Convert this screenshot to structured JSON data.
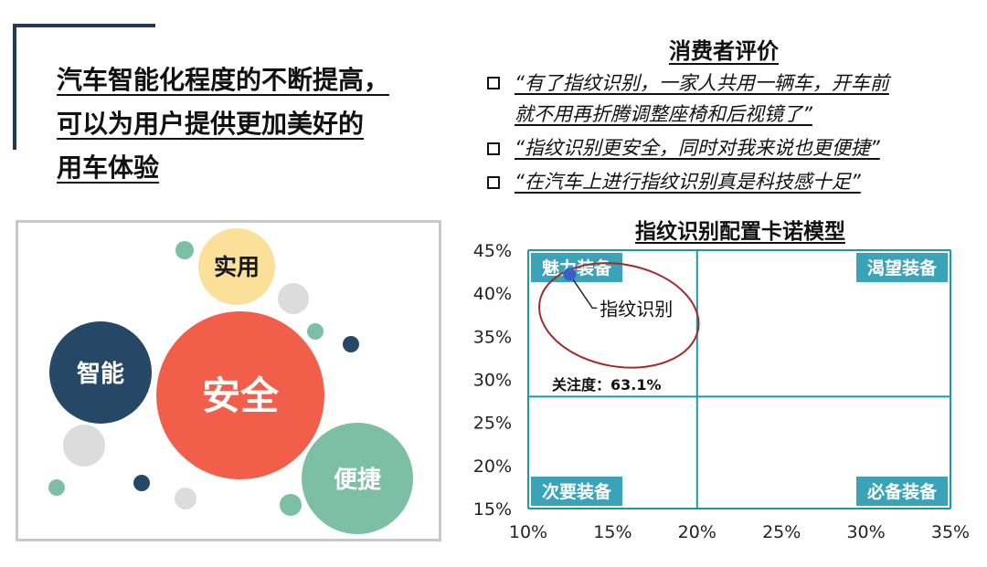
{
  "headline": {
    "lines": [
      "汽车智能化程度的不断提高，",
      "可以为用户提供更加美好的",
      "用车体验"
    ]
  },
  "bubbles": {
    "labels": {
      "safe": "安全",
      "smart": "智能",
      "practical": "实用",
      "convenient": "便捷"
    },
    "colors": {
      "safe": "#f15e4a",
      "smart": "#244866",
      "practical": "#fbe09a",
      "convenient": "#7dbfa4",
      "gray": "#dcdcdc"
    }
  },
  "reviews": {
    "title": "消费者评价",
    "items": [
      {
        "lines": [
          "“有了指纹识别，一家人共用一辆车，开车前",
          "就不用再折腾调整座椅和后视镜了”"
        ]
      },
      {
        "lines": [
          "“指纹识别更安全，同时对我来说也更便捷”"
        ]
      },
      {
        "lines": [
          "“在汽车上进行指纹识别真是科技感十足”"
        ]
      }
    ]
  },
  "chart_data": {
    "type": "scatter",
    "title": "指纹识别配置卡诺模型",
    "xlim": [
      0.1,
      0.35
    ],
    "ylim": [
      0.15,
      0.45
    ],
    "x_ticks": [
      "10%",
      "15%",
      "20%",
      "25%",
      "30%",
      "35%"
    ],
    "y_ticks": [
      "45%",
      "40%",
      "35%",
      "30%",
      "25%",
      "20%",
      "15%"
    ],
    "x_divider": 0.2,
    "y_divider": 0.28,
    "quadrants": {
      "top_left": "魅力装备",
      "top_right": "渴望装备",
      "bottom_left": "次要装备",
      "bottom_right": "必备装备"
    },
    "points": [
      {
        "label": "指纹识别",
        "x": 0.1245,
        "y": 0.422
      }
    ],
    "annotation": "关注度：63.1%",
    "colors": {
      "axis": "#1a9aa6",
      "quad_bg": "#3aa3b8",
      "point": "#3a5ec8",
      "circle": "#a8282a"
    }
  }
}
